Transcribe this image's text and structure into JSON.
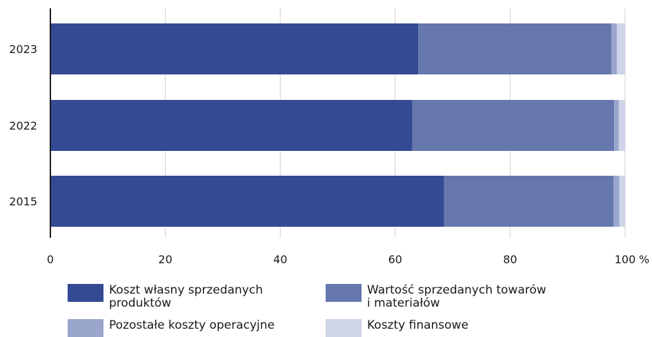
{
  "chart_data": {
    "type": "bar",
    "orientation": "horizontal",
    "stacked": true,
    "categories": [
      "2023",
      "2022",
      "2015"
    ],
    "series": [
      {
        "name": "Koszt własny sprzedanych produktów",
        "values": [
          64.0,
          63.0,
          68.5
        ],
        "color": "#344a93"
      },
      {
        "name": "Wartość sprzedanych towarów i materiałów",
        "values": [
          33.6,
          35.1,
          29.5
        ],
        "color": "#6677ad"
      },
      {
        "name": "Pozostałe koszty operacyjne",
        "values": [
          1.0,
          0.8,
          1.0
        ],
        "color": "#9aa6cc"
      },
      {
        "name": "Koszty finansowe",
        "values": [
          1.4,
          1.1,
          1.0
        ],
        "color": "#cfd4e8"
      }
    ],
    "xlim": [
      0,
      100
    ],
    "x_ticks": [
      "0",
      "20",
      "40",
      "60",
      "80",
      "100"
    ],
    "x_unit": "%",
    "grid": true,
    "legend_position": "bottom"
  },
  "legend": {
    "items": [
      {
        "label_line1": "Koszt własny sprzedanych",
        "label_line2": "produktów",
        "color": "#344a93"
      },
      {
        "label_line1": "Wartość sprzedanych towarów",
        "label_line2": "i materiałów",
        "color": "#6677ad"
      },
      {
        "label_line1": "Pozostałe koszty operacyjne",
        "label_line2": "",
        "color": "#9aa6cc"
      },
      {
        "label_line1": "Koszty finansowe",
        "label_line2": "",
        "color": "#cfd4e8"
      }
    ]
  }
}
